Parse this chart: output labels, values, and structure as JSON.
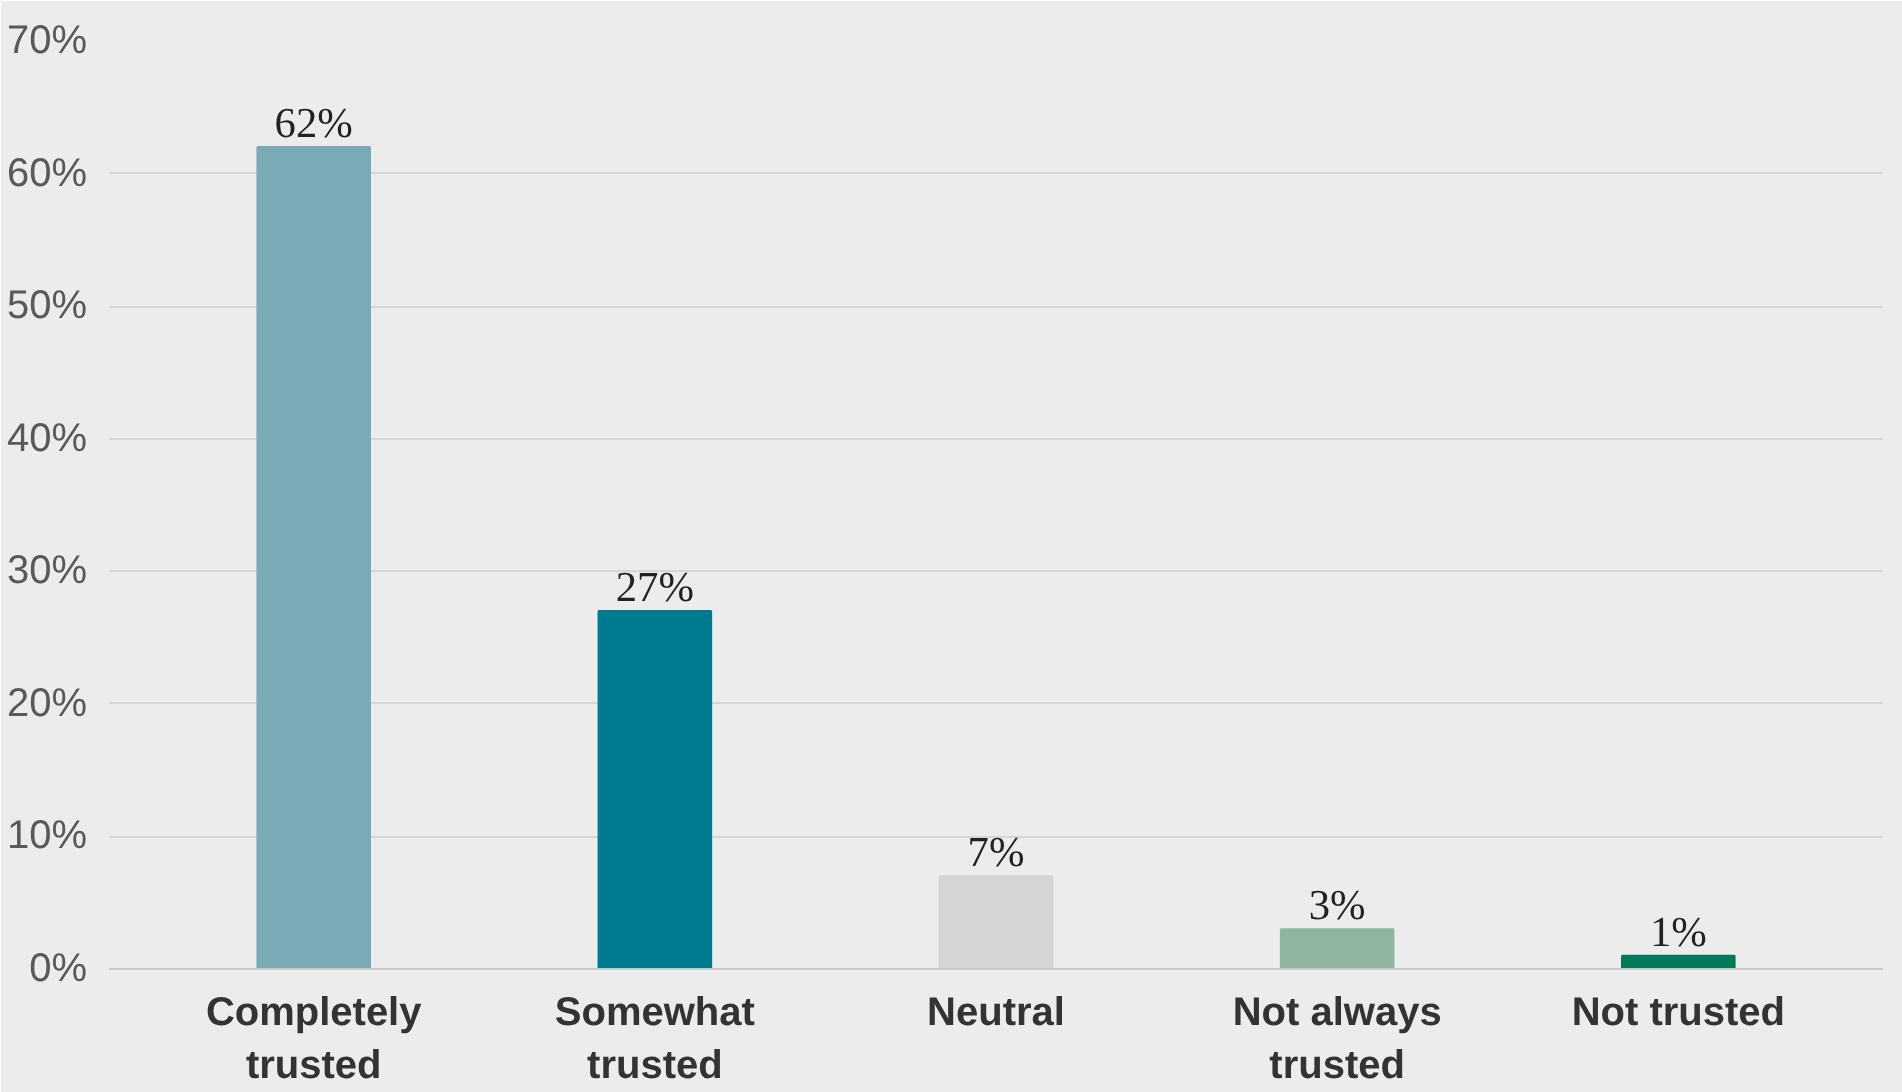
{
  "chart_data": {
    "type": "bar",
    "categories": [
      "Completely trusted",
      "Somewhat trusted",
      "Neutral",
      "Not always trusted",
      "Not trusted"
    ],
    "values": [
      62,
      27,
      7,
      3,
      1
    ],
    "colors": [
      "#7aaab6",
      "#007a8e",
      "#d4d5d7",
      "#8fb4a0",
      "#007a5b"
    ],
    "value_labels": [
      "62%",
      "27%",
      "7%",
      "3%",
      "1%"
    ],
    "ylim": [
      0,
      70
    ],
    "yticks": [
      {
        "value": 0,
        "label": "0%"
      },
      {
        "value": 10,
        "label": "10%"
      },
      {
        "value": 20,
        "label": "20%"
      },
      {
        "value": 30,
        "label": "30%"
      },
      {
        "value": 40,
        "label": "40%"
      },
      {
        "value": 50,
        "label": "50%"
      },
      {
        "value": 60,
        "label": "60%"
      },
      {
        "value": 70,
        "label": "70%"
      }
    ],
    "grid": "y"
  }
}
